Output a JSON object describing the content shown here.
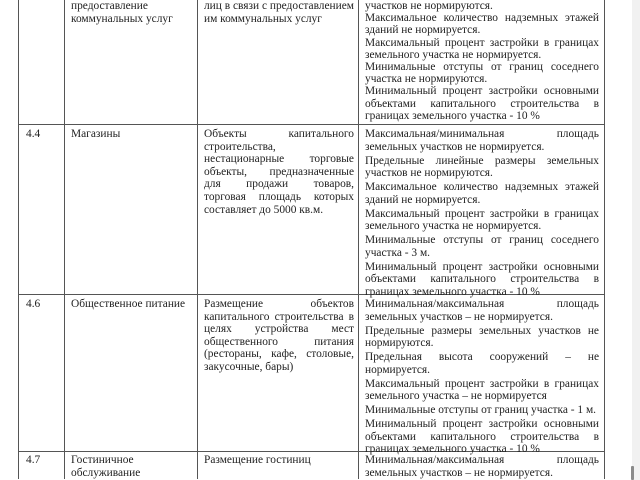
{
  "rows": [
    {
      "code": "",
      "name": "предоставление коммунальных услуг",
      "description_lines": [
        "лиц в связи с предоставлением",
        "им коммунальных услуг"
      ],
      "parameters": [
        "участков не нормируются.",
        "Максимальное количество надземных этажей зданий не нормируется.",
        "Максимальный процент застройки в границах земельного участка не нормируется.",
        "Минимальные отступы от границ соседнего участка не нормируются.",
        "Минимальный процент застройки основными объектами капитального строительства в границах земельного участка - 10 %"
      ]
    },
    {
      "code": "4.4",
      "name": "Магазины",
      "description_lines": [
        "Объекты капитального",
        "строительства,",
        "нестационарные торговые",
        "объекты, предназначенные",
        "для продажи товаров,",
        "торговая площадь которых",
        "составляет до 5000 кв.м."
      ],
      "parameters": [
        "Максимальная/минимальная площадь земельных участков не нормируется.",
        "Предельные линейные размеры земельных участков не нормируются.",
        "Максимальное количество надземных этажей зданий не нормируется.",
        "Максимальный процент застройки в границах земельного участка не нормируется.",
        "Минимальные отступы от границ соседнего участка - 3 м.",
        "Минимальный процент застройки основными объектами капитального строительства в границах земельного участка - 10 %"
      ]
    },
    {
      "code": "4.6",
      "name": "Общественное питание",
      "description_lines": [
        "Размещение объектов",
        "капитального строительства в",
        "целях устройства мест",
        "общественного питания",
        "(рестораны, кафе, столовые,",
        "закусочные, бары)"
      ],
      "parameters": [
        "Минимальная/максимальная площадь земельных участков – не нормируется.",
        "Предельные размеры земельных участков не нормируются.",
        "Предельная высота сооружений – не нормируется.",
        "Максимальный процент застройки в границах земельного участка – не нормируется",
        "Минимальные отступы от границ участка - 1 м.",
        "Минимальный процент застройки основными объектами капитального строительства в границах земельного участка - 10 %"
      ]
    },
    {
      "code": "4.7",
      "name": "Гостиничное обслуживание",
      "description_lines": [
        "Размещение гостиниц"
      ],
      "parameters": [
        "Минимальная/максимальная площадь земельных участков – не нормируется."
      ]
    }
  ]
}
